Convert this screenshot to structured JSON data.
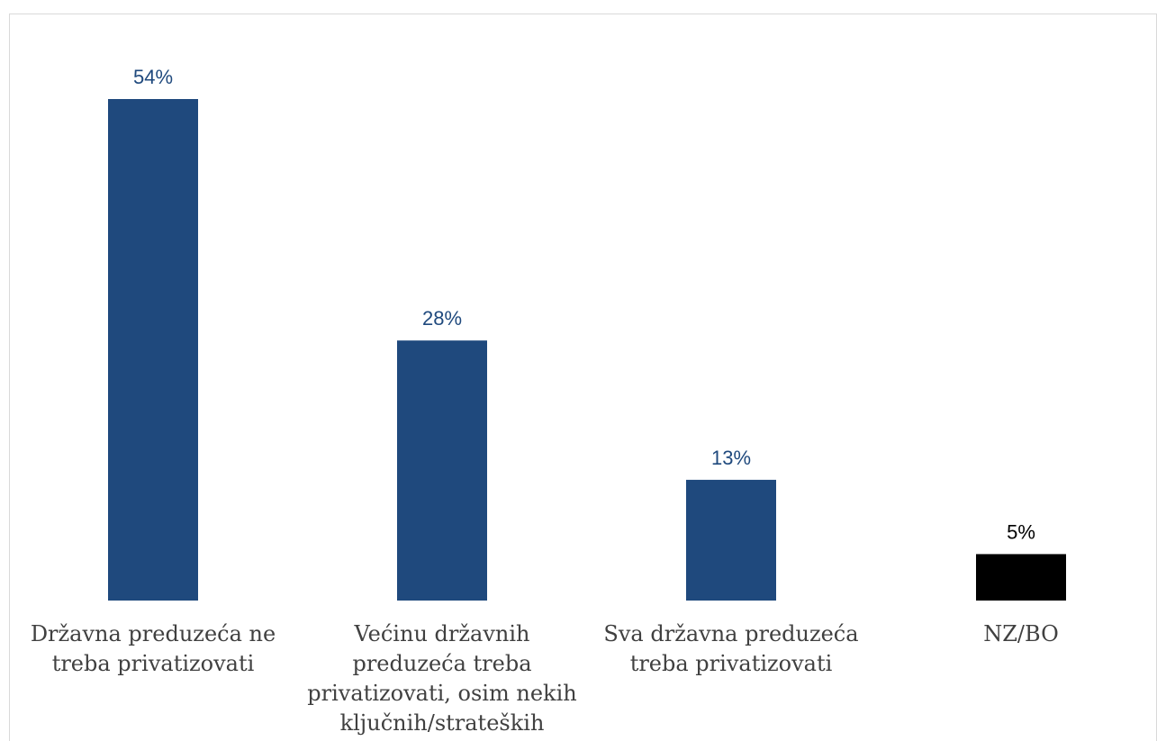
{
  "chart_data": {
    "type": "bar",
    "categories": [
      [
        "Državna preduzeća ne",
        "treba privatizovati"
      ],
      [
        "Većinu državnih",
        "preduzeća treba",
        "privatizovati, osim nekih",
        "ključnih/strateških"
      ],
      [
        "Sva državna preduzeća",
        "treba privatizovati"
      ],
      [
        "NZ/BO"
      ]
    ],
    "values": [
      54,
      28,
      13,
      5
    ],
    "value_labels": [
      "54%",
      "28%",
      "13%",
      "5%"
    ],
    "bar_colors": [
      "#1f497d",
      "#1f497d",
      "#1f497d",
      "#000000"
    ],
    "label_colors": [
      "#1f497d",
      "#1f497d",
      "#1f497d",
      "#000000"
    ],
    "title": "",
    "xlabel": "",
    "ylabel": "",
    "ylim": [
      0,
      54
    ],
    "grid": false,
    "legend": "none"
  }
}
